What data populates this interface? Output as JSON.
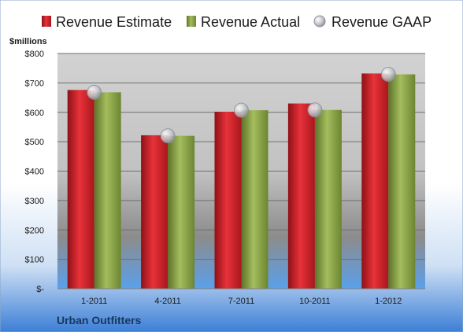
{
  "chart_data": {
    "type": "bar",
    "company": "Urban Outfitters",
    "unit_label": "$millions",
    "categories": [
      "1-2011",
      "4-2011",
      "7-2011",
      "10-2011",
      "1-2012"
    ],
    "series": [
      {
        "name": "Revenue Estimate",
        "kind": "bar",
        "color": "#d9262e",
        "values": [
          676,
          522,
          602,
          630,
          732
        ]
      },
      {
        "name": "Revenue Actual",
        "kind": "bar",
        "color": "#8fa84a",
        "values": [
          668,
          520,
          607,
          608,
          729
        ]
      },
      {
        "name": "Revenue GAAP",
        "kind": "marker",
        "color": "#b7b9bf",
        "values": [
          668,
          520,
          607,
          608,
          729
        ]
      }
    ],
    "y_ticks": [
      0,
      100,
      200,
      300,
      400,
      500,
      600,
      700,
      800
    ],
    "y_tick_labels": [
      "$-",
      "$100",
      "$200",
      "$300",
      "$400",
      "$500",
      "$600",
      "$700",
      "$800"
    ],
    "ylim": [
      0,
      800
    ],
    "grid": true,
    "legend": "top"
  }
}
